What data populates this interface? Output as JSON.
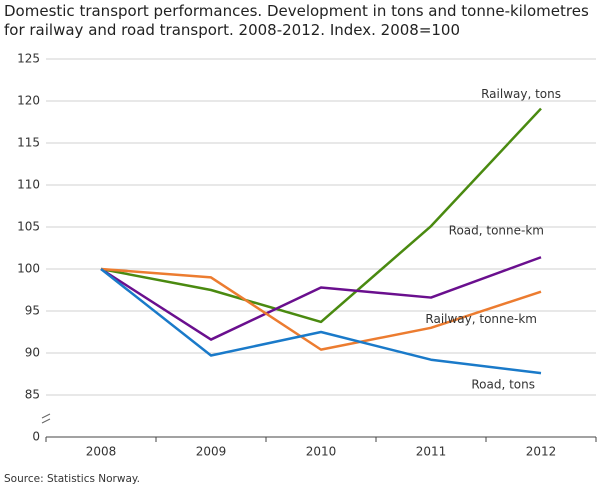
{
  "chart_data": {
    "type": "line",
    "title": "Domestic transport performances. Development in tons and tonne-kilometres for railway and road transport. 2008-2012. Index. 2008=100",
    "source": "Source: Statistics Norway.",
    "categories": [
      "2008",
      "2009",
      "2010",
      "2011",
      "2012"
    ],
    "series": [
      {
        "name": "Railway, tons",
        "color": "#4a8a10",
        "values": [
          100,
          97.5,
          93.7,
          105.1,
          119.1
        ]
      },
      {
        "name": "Road, tonne-km",
        "color": "#6a0f8e",
        "values": [
          100,
          91.6,
          97.8,
          96.6,
          101.4
        ]
      },
      {
        "name": "Railway, tonne-km",
        "color": "#ec7c30",
        "values": [
          100,
          99.0,
          90.4,
          93.0,
          97.3
        ]
      },
      {
        "name": "Road, tons",
        "color": "#1a7ac9",
        "values": [
          100,
          89.7,
          92.5,
          89.2,
          87.6
        ]
      }
    ],
    "ylim": [
      0,
      125
    ],
    "yticks": [
      0,
      85,
      90,
      95,
      100,
      105,
      110,
      115,
      120,
      125
    ],
    "axis_break": true,
    "grid": true
  }
}
